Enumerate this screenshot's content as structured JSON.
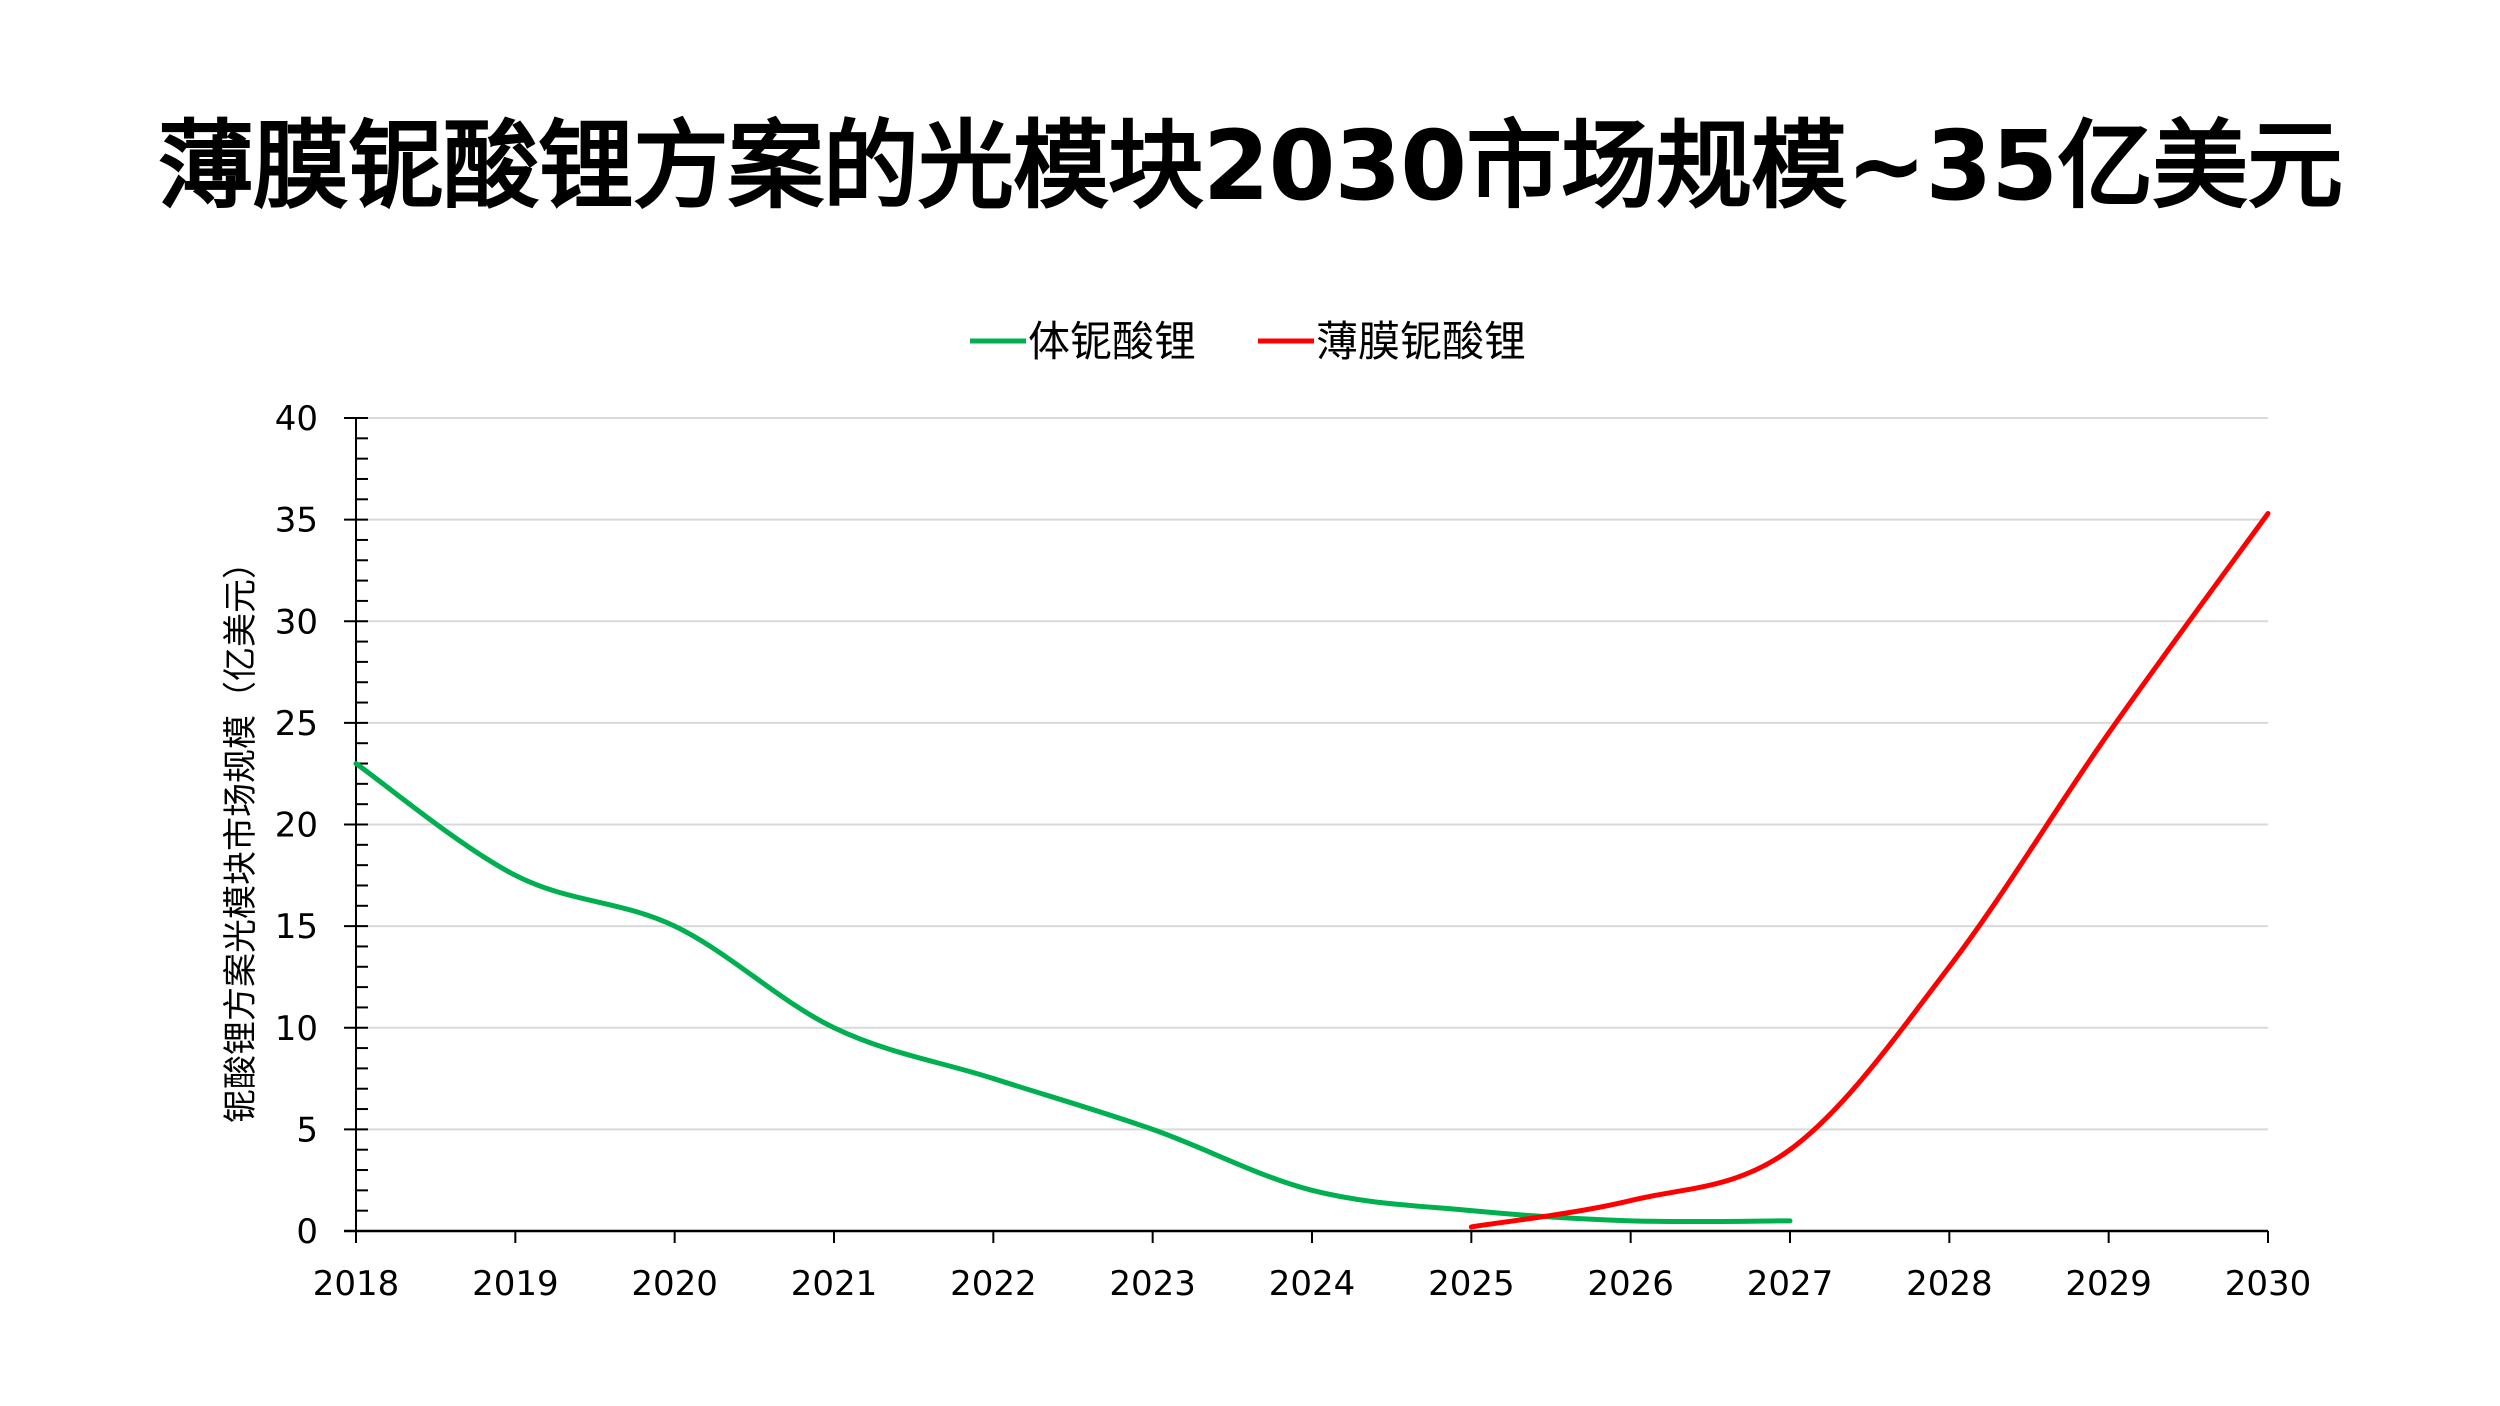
{
  "chart_data": {
    "type": "line",
    "title": "薄膜铌酸锂方案的光模块2030市场规模~35亿美元",
    "xlabel": "",
    "ylabel": "铌酸锂方案光模块市场规模（亿美元）",
    "x": [
      2018,
      2019,
      2020,
      2021,
      2022,
      2023,
      2024,
      2025,
      2026,
      2027,
      2028,
      2029,
      2030
    ],
    "xlim": [
      2018,
      2030
    ],
    "ylim": [
      0,
      40
    ],
    "yticks": [
      0,
      5,
      10,
      15,
      20,
      25,
      30,
      35,
      40
    ],
    "grid": true,
    "legend_position": "top-center",
    "series": [
      {
        "name": "体铌酸锂",
        "color": "#00b050",
        "x": [
          2018,
          2019,
          2020,
          2021,
          2022,
          2023,
          2024,
          2025,
          2026,
          2027
        ],
        "values": [
          23,
          17.5,
          15,
          10,
          7.5,
          5,
          2,
          1,
          0.5,
          0.5
        ]
      },
      {
        "name": "薄膜铌酸锂",
        "color": "#ff0000",
        "x": [
          2025,
          2026,
          2027,
          2028,
          2029,
          2030
        ],
        "values": [
          0.2,
          1.5,
          4,
          13,
          24.5,
          35.3
        ]
      }
    ]
  }
}
